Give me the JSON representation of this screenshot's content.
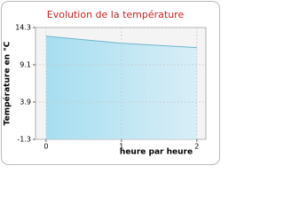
{
  "chart_data": {
    "type": "area",
    "title": "Evolution de la température",
    "x_label": "heure par heure",
    "y_label": "Température en °C",
    "x": [
      0,
      1,
      2
    ],
    "values": [
      13.1,
      12.1,
      11.5
    ],
    "color": "#7ecfe8",
    "xlim": [
      -0.14,
      2.12
    ],
    "xticks": [
      0,
      1,
      2
    ],
    "ylim": [
      -1.3,
      14.3
    ],
    "yticks": [
      -1.3,
      3.9,
      9.1,
      14.3
    ],
    "grid": true
  }
}
